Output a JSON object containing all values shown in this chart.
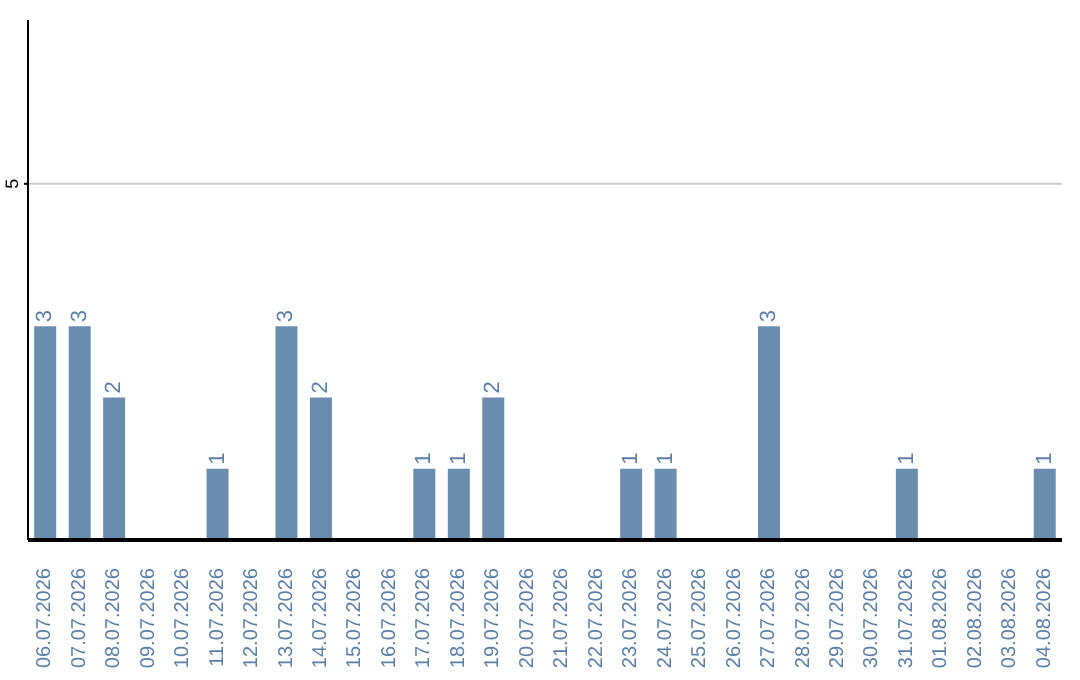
{
  "chart_data": {
    "type": "bar",
    "categories": [
      "06.07.2026",
      "07.07.2026",
      "08.07.2026",
      "09.07.2026",
      "10.07.2026",
      "11.07.2026",
      "12.07.2026",
      "13.07.2026",
      "14.07.2026",
      "15.07.2026",
      "16.07.2026",
      "17.07.2026",
      "18.07.2026",
      "19.07.2026",
      "20.07.2026",
      "21.07.2026",
      "22.07.2026",
      "23.07.2026",
      "24.07.2026",
      "25.07.2026",
      "26.07.2026",
      "27.07.2026",
      "28.07.2026",
      "29.07.2026",
      "30.07.2026",
      "31.07.2026",
      "01.08.2026",
      "02.08.2026",
      "03.08.2026",
      "04.08.2026"
    ],
    "values": [
      3,
      3,
      2,
      0,
      0,
      1,
      0,
      3,
      2,
      0,
      0,
      1,
      1,
      2,
      0,
      0,
      0,
      1,
      1,
      0,
      0,
      3,
      0,
      0,
      0,
      1,
      0,
      0,
      0,
      1
    ],
    "value_labels": [
      "3",
      "3",
      "2",
      null,
      null,
      "1",
      null,
      "3",
      "2",
      null,
      null,
      "1",
      "1",
      "2",
      null,
      null,
      null,
      "1",
      "1",
      null,
      null,
      "3",
      null,
      null,
      null,
      "1",
      null,
      null,
      null,
      "1"
    ],
    "color": "#6a8cad",
    "ylim": [
      0,
      7.3
    ],
    "yticks": [
      5
    ],
    "grid": "y"
  }
}
